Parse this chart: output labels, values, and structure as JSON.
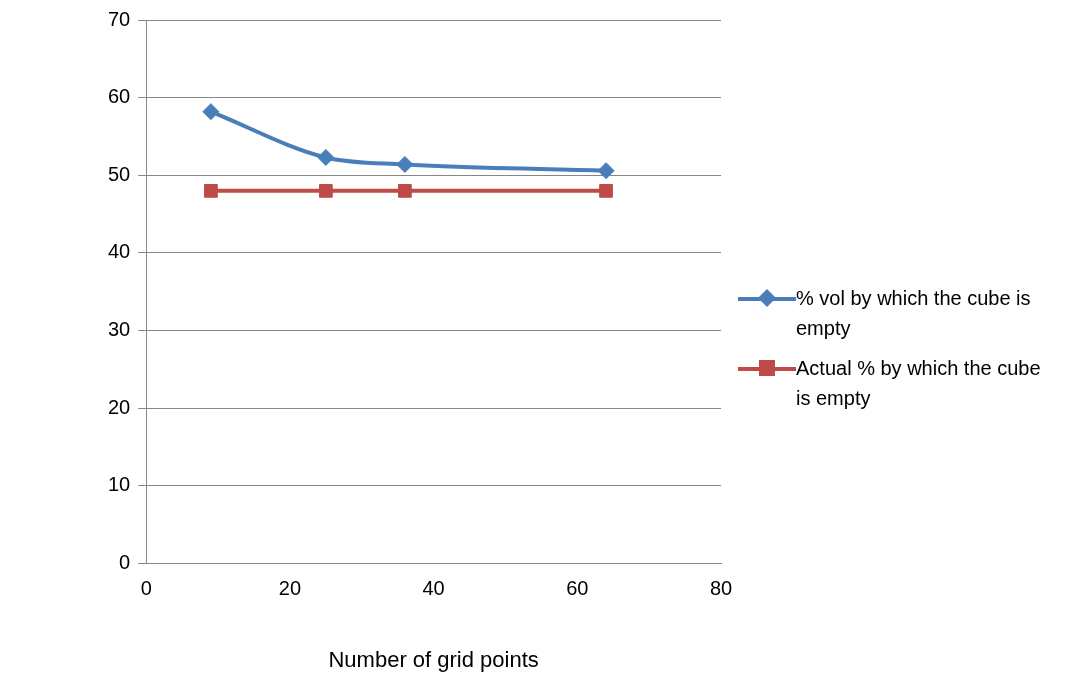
{
  "chart_data": {
    "type": "line",
    "xlabel": "Number of grid points",
    "x": [
      9,
      25,
      36,
      64
    ],
    "series": [
      {
        "name": "% vol by which the cube is empty",
        "color": "#4a7ebb",
        "marker": "diamond",
        "values": [
          58.2,
          52.3,
          51.4,
          50.6
        ]
      },
      {
        "name": "Actual % by which the cube is empty",
        "color": "#be4b48",
        "marker": "square",
        "values": [
          48,
          48,
          48,
          48
        ]
      }
    ],
    "xlim": [
      0,
      80
    ],
    "xticks": [
      0,
      20,
      40,
      60,
      80
    ],
    "ylim": [
      0,
      70
    ],
    "yticks": [
      0,
      10,
      20,
      30,
      40,
      50,
      60,
      70
    ],
    "grid": "y",
    "legend": "right"
  }
}
